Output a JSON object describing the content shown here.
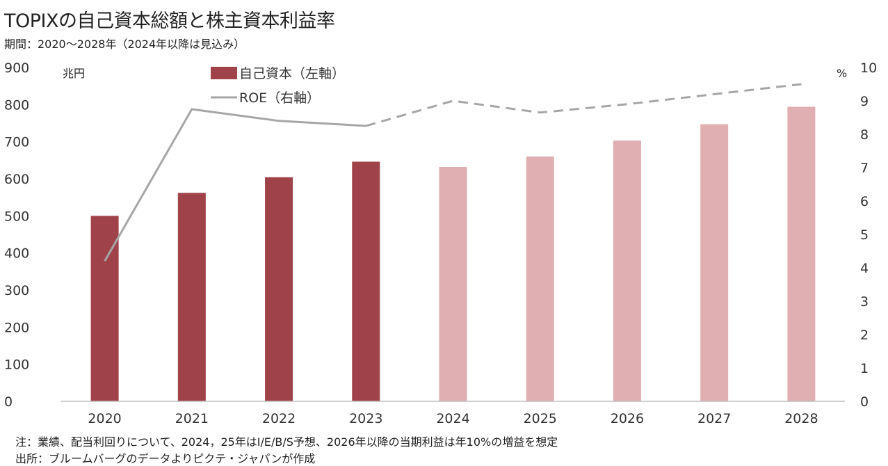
{
  "title": "TOPIXの自己資本総額と株主資本利益率",
  "subtitle": "期間：2020～2028年（2024年以降は見込み）",
  "footnotes": {
    "note": "注：業績、配当利回りについて、2024，25年はI/E/B/S予想、2026年以降の当期利益は年10%の増益を想定",
    "source": "出所：ブルームバーグのデータよりピクテ・ジャパンが作成"
  },
  "chart_data": {
    "type": "bar",
    "categories": [
      "2020",
      "2021",
      "2022",
      "2023",
      "2024",
      "2025",
      "2026",
      "2027",
      "2028"
    ],
    "series": [
      {
        "name": "自己資本（左軸）",
        "type": "bar",
        "axis": "left",
        "values": [
          500,
          562,
          604,
          646,
          632,
          660,
          703,
          747,
          794
        ],
        "forecast_from_index": 4
      },
      {
        "name": "ROE（右軸）",
        "type": "line",
        "axis": "right",
        "values": [
          4.2,
          8.75,
          8.4,
          8.25,
          9.0,
          8.65,
          8.9,
          9.2,
          9.5
        ],
        "forecast_from_index": 3
      }
    ],
    "left_axis": {
      "unit": "兆円",
      "ylim": [
        0,
        900
      ],
      "ticks": [
        0,
        100,
        200,
        300,
        400,
        500,
        600,
        700,
        800,
        900
      ]
    },
    "right_axis": {
      "unit": "%",
      "ylim": [
        0,
        10
      ],
      "ticks": [
        0,
        1,
        2,
        3,
        4,
        5,
        6,
        7,
        8,
        9,
        10
      ]
    },
    "grid": false,
    "legend_position": "top-left",
    "colors": {
      "bar_actual": "#a0424a",
      "bar_forecast": "#dfafb2",
      "line": "#a6a6a6",
      "axis": "#bfbfbf"
    }
  }
}
